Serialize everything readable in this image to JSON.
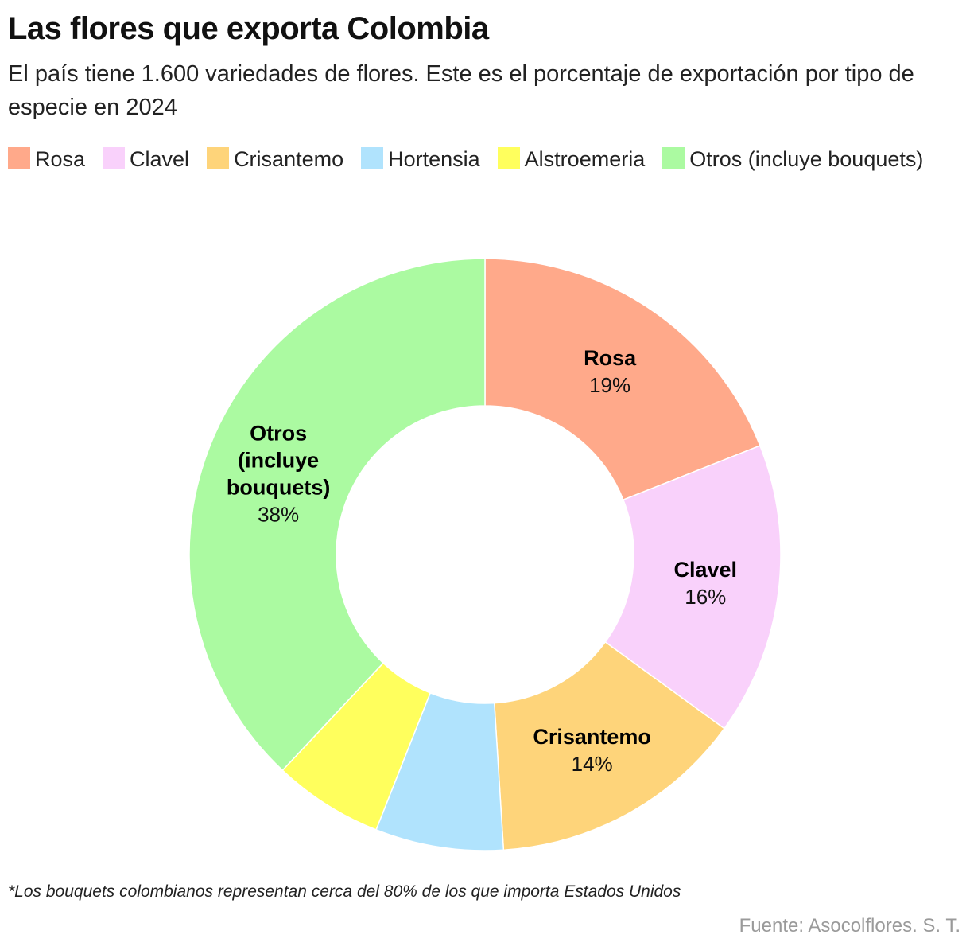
{
  "header": {
    "title": "Las flores que exporta Colombia",
    "subtitle": "El país tiene 1.600 variedades de flores. Este es el porcentaje de exportación por tipo de especie en 2024"
  },
  "chart_data": {
    "type": "pie",
    "variant": "donut",
    "title": "Las flores que exporta Colombia",
    "subtitle": "El país tiene 1.600 variedades de flores. Este es el porcentaje de exportación por tipo de especie en 2024",
    "legend_position": "top-left",
    "slices": [
      {
        "name": "Rosa",
        "value": 19,
        "label": "19%",
        "color": "#ffa98a",
        "label_lines": [
          "Rosa"
        ],
        "show_label": true
      },
      {
        "name": "Clavel",
        "value": 16,
        "label": "16%",
        "color": "#f9d1fb",
        "label_lines": [
          "Clavel"
        ],
        "show_label": true
      },
      {
        "name": "Crisantemo",
        "value": 14,
        "label": "14%",
        "color": "#fed47a",
        "label_lines": [
          "Crisantemo"
        ],
        "show_label": true
      },
      {
        "name": "Hortensia",
        "value": 7,
        "label": "",
        "color": "#b0e3fd",
        "label_lines": [],
        "show_label": false
      },
      {
        "name": "Alstroemeria",
        "value": 6,
        "label": "",
        "color": "#ffff5d",
        "label_lines": [],
        "show_label": false
      },
      {
        "name": "Otros (incluye bouquets)",
        "value": 38,
        "label": "38%",
        "color": "#abfaa1",
        "label_lines": [
          "Otros",
          "(incluye",
          "bouquets)"
        ],
        "show_label": true
      }
    ]
  },
  "footer": {
    "footnote": "*Los bouquets colombianos representan cerca del 80% de los que importa Estados Unidos",
    "source": "Fuente: Asocolflores. S. T."
  }
}
